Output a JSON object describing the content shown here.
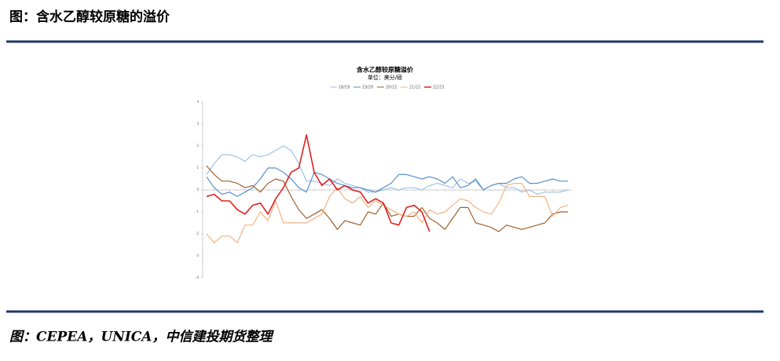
{
  "header": {
    "title": "图：含水乙醇较原糖的溢价"
  },
  "footer": {
    "source": "图：CEPEA，UNICA，中信建投期货整理"
  },
  "chart_data": {
    "type": "line",
    "title": "含水乙醇较原糖溢价",
    "subtitle": "单位：美分/磅",
    "categories": [
      null,
      null,
      null,
      null,
      null,
      null,
      null,
      null,
      null,
      null,
      null,
      null,
      null,
      null,
      null,
      null,
      null,
      null,
      null,
      null,
      null,
      null,
      null,
      null,
      null,
      null,
      null,
      null,
      null,
      null,
      null,
      null,
      null,
      null,
      null,
      null,
      null,
      null,
      null,
      null,
      null,
      null,
      null,
      null,
      null,
      null,
      null,
      null
    ],
    "ylim": [
      -4,
      4
    ],
    "yticks": [
      -4,
      -3,
      -2,
      -1,
      0,
      1,
      2,
      3,
      4
    ],
    "legend": "top",
    "series": [
      {
        "name": "18/19",
        "color": "#9dc3e6",
        "values": [
          0.7,
          1.2,
          1.6,
          1.6,
          1.5,
          1.3,
          1.6,
          1.5,
          1.6,
          1.8,
          2.0,
          1.8,
          1.2,
          0.4,
          0.4,
          0.3,
          0.2,
          0.5,
          0.3,
          0.2,
          0.1,
          -0.1,
          -0.1,
          0,
          0.1,
          0,
          0.1,
          0.1,
          0,
          0.2,
          0.3,
          0.2,
          0.1,
          0.5,
          0.3,
          0.4,
          0,
          0.2,
          0.3,
          0.1,
          0.1,
          -0.1,
          0,
          -0.2,
          -0.1,
          -0.1,
          -0.1,
          0
        ]
      },
      {
        "name": "19/20",
        "color": "#5b8fc9",
        "values": [
          0.6,
          0.1,
          -0.2,
          -0.1,
          -0.3,
          -0.1,
          0.1,
          0.5,
          1.0,
          1.0,
          0.8,
          0.5,
          0.1,
          -0.1,
          0.8,
          0.7,
          0.5,
          0.3,
          0.2,
          0.1,
          0.1,
          0,
          -0.1,
          0.1,
          0.3,
          0.7,
          0.7,
          0.6,
          0.5,
          0.6,
          0.5,
          0.3,
          0.6,
          0.1,
          0.2,
          0.5,
          0,
          0.2,
          0.3,
          0.3,
          0.5,
          0.6,
          0.3,
          0.3,
          0.4,
          0.5,
          0.4,
          0.4
        ]
      },
      {
        "name": "20/21",
        "color": "#a0612d",
        "values": [
          1.1,
          0.7,
          0.4,
          0.4,
          0.3,
          0.1,
          0.2,
          -0.1,
          0.3,
          0.5,
          0.4,
          -0.3,
          -0.9,
          -1.3,
          -1.1,
          -0.9,
          -1.3,
          -1.8,
          -1.4,
          -1.5,
          -1.6,
          -1.0,
          -1.1,
          -0.6,
          -1.2,
          -1.1,
          -1.2,
          -1.2,
          -0.8,
          -1.3,
          -1.5,
          -1.8,
          -1.3,
          -0.8,
          -0.8,
          -1.5,
          -1.6,
          -1.7,
          -1.9,
          -1.6,
          -1.7,
          -1.8,
          -1.7,
          -1.6,
          -1.5,
          -1.1,
          -1.0,
          -1.0
        ]
      },
      {
        "name": "21/22",
        "color": "#f4b183",
        "values": [
          -2.0,
          -2.4,
          -2.1,
          -2.1,
          -2.4,
          -1.6,
          -1.6,
          -1.0,
          -1.4,
          -0.5,
          -1.5,
          -1.5,
          -1.5,
          -1.5,
          -1.3,
          -1.1,
          -0.3,
          0.1,
          -0.4,
          -0.6,
          -0.3,
          -0.8,
          -0.5,
          -0.7,
          -0.9,
          -1.1,
          -1.2,
          -1.0,
          -1.5,
          -0.9,
          -1.1,
          -1.0,
          -0.7,
          -0.4,
          -0.5,
          -0.8,
          -1.0,
          -1.1,
          -0.6,
          0.2,
          0.3,
          0.3,
          -0.3,
          -0.3,
          -0.3,
          -1.2,
          -0.8,
          -0.7
        ]
      },
      {
        "name": "22/23",
        "color": "#e02020",
        "values": [
          -0.3,
          -0.2,
          -0.5,
          -0.5,
          -0.9,
          -1.1,
          -0.7,
          -0.6,
          -1.1,
          -0.4,
          0.1,
          0.8,
          1.0,
          2.5,
          0.8,
          0.2,
          0.5,
          0,
          0.2,
          0,
          -0.1,
          -0.6,
          -0.4,
          -0.6,
          -1.5,
          -1.6,
          -0.8,
          -0.7,
          -1.0,
          -1.9,
          null,
          null,
          null,
          null,
          null,
          null,
          null,
          null,
          null,
          null,
          null,
          null,
          null,
          null,
          null,
          null,
          null,
          null
        ]
      }
    ]
  }
}
